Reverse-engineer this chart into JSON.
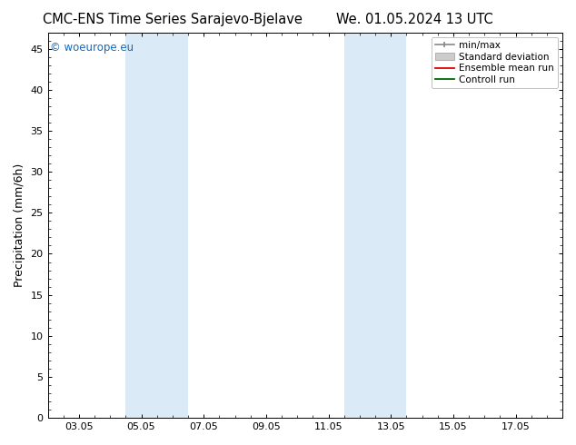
{
  "title_left": "CMC-ENS Time Series Sarajevo-Bjelave",
  "title_right": "We. 01.05.2024 13 UTC",
  "ylabel": "Precipitation (mm/6h)",
  "watermark": "© woeurope.eu",
  "x_tick_labels": [
    "03.05",
    "05.05",
    "07.05",
    "09.05",
    "11.05",
    "13.05",
    "15.05",
    "17.05"
  ],
  "x_tick_positions": [
    2,
    4,
    6,
    8,
    10,
    12,
    14,
    16
  ],
  "xlim": [
    1,
    17.5
  ],
  "ylim": [
    0,
    47
  ],
  "yticks": [
    0,
    5,
    10,
    15,
    20,
    25,
    30,
    35,
    40,
    45
  ],
  "shaded_bands": [
    {
      "xmin": 3.5,
      "xmax": 5.5,
      "color": "#daeaf7"
    },
    {
      "xmin": 10.5,
      "xmax": 12.5,
      "color": "#daeaf7"
    }
  ],
  "bg_color": "#ffffff",
  "plot_bg_color": "#ffffff",
  "title_fontsize": 10.5,
  "ylabel_fontsize": 9,
  "tick_fontsize": 8,
  "watermark_color": "#1a6aba",
  "watermark_fontsize": 8.5
}
